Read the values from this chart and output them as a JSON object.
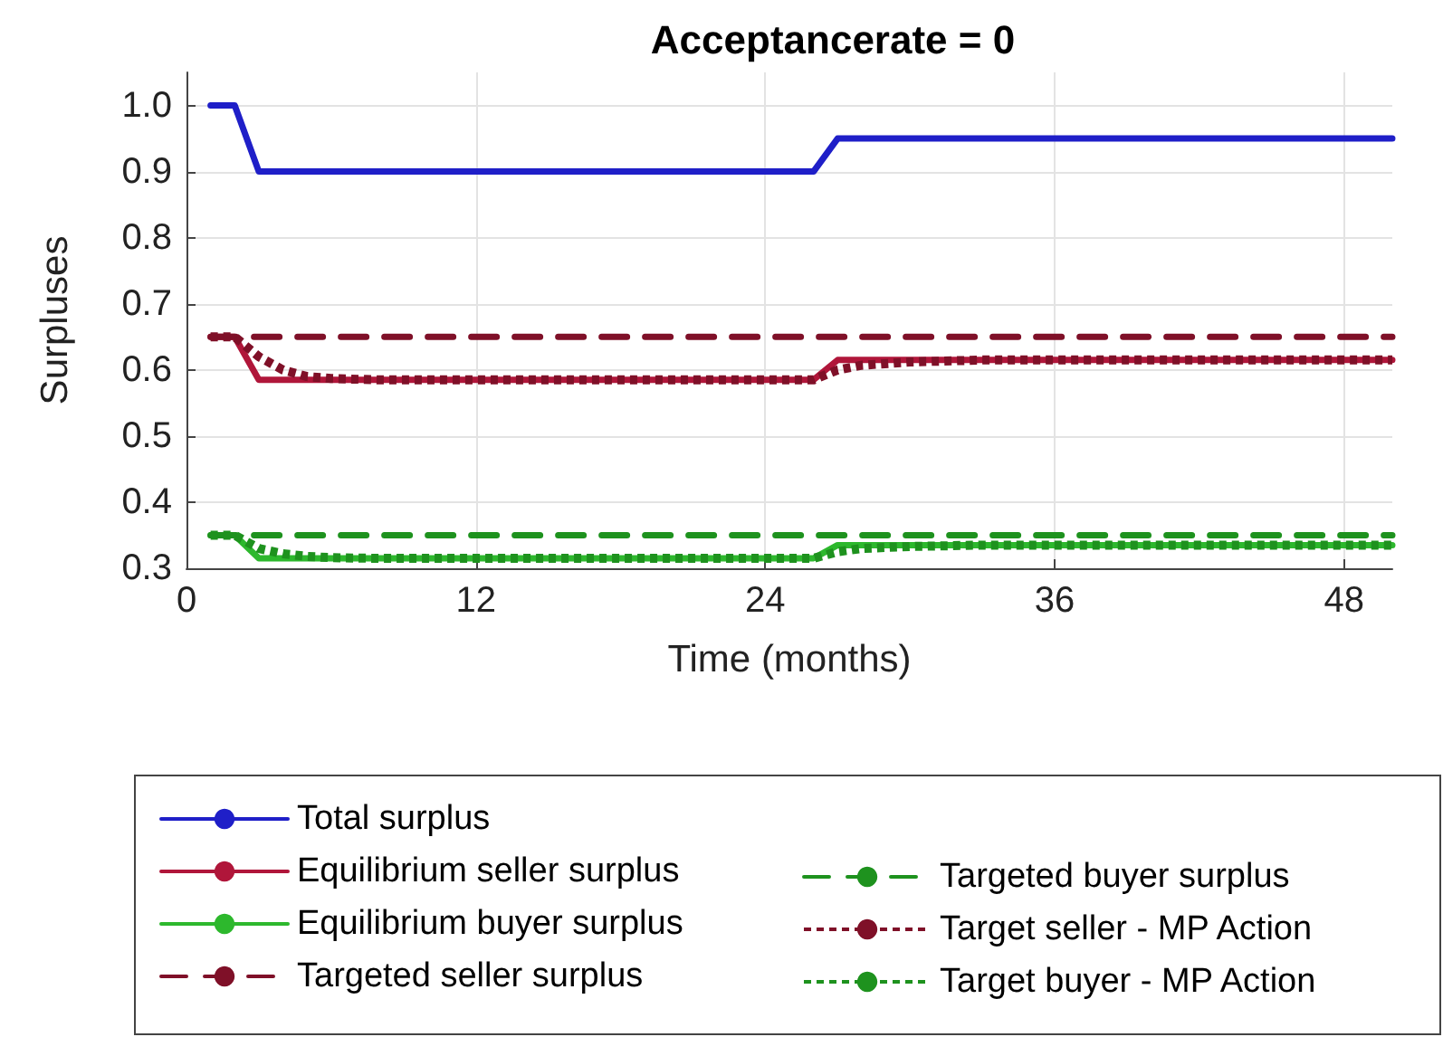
{
  "chart_data": {
    "type": "line",
    "title": "Acceptancerate = 0",
    "xlabel": "Time (months)",
    "ylabel": "Surpluses",
    "xlim": [
      0,
      50
    ],
    "xticks": [
      0,
      12,
      24,
      36,
      48
    ],
    "ylim": [
      0.3,
      1.05
    ],
    "yticks": [
      0.3,
      0.4,
      0.5,
      0.6,
      0.7,
      0.8,
      0.9,
      {
        "value": 1,
        "label": "1.0"
      }
    ],
    "grid": true,
    "legend": "bottom",
    "marker": "none",
    "series": [
      {
        "name": "Total surplus",
        "color": "#1f1fc8",
        "line_style": "solid",
        "x": [
          1,
          2,
          3,
          26,
          27,
          50
        ],
        "values": [
          1.0,
          1.0,
          0.9,
          0.9,
          0.95,
          0.95
        ]
      },
      {
        "name": "Equilibrium seller surplus",
        "color": "#b0163a",
        "line_style": "solid",
        "x": [
          1,
          2,
          3,
          26,
          27,
          50
        ],
        "values": [
          0.65,
          0.65,
          0.585,
          0.585,
          0.615,
          0.615
        ]
      },
      {
        "name": "Equilibrium buyer surplus",
        "color": "#2db82d",
        "line_style": "solid",
        "x": [
          1,
          2,
          3,
          26,
          27,
          50
        ],
        "values": [
          0.35,
          0.35,
          0.315,
          0.315,
          0.335,
          0.335
        ]
      },
      {
        "name": "Targeted seller surplus",
        "color": "#7f1028",
        "line_style": "dashed",
        "x": [
          1,
          50
        ],
        "values": [
          0.65,
          0.65
        ]
      },
      {
        "name": "Targeted buyer surplus",
        "color": "#1e921e",
        "line_style": "dashed",
        "x": [
          1,
          50
        ],
        "values": [
          0.35,
          0.35
        ]
      },
      {
        "name": "Target seller - MP Action",
        "color": "#7f1028",
        "line_style": "dotted",
        "x": [
          1,
          2,
          3,
          4,
          5,
          6,
          8,
          26,
          27,
          28,
          30,
          33,
          50
        ],
        "values": [
          0.65,
          0.65,
          0.62,
          0.6,
          0.59,
          0.587,
          0.585,
          0.585,
          0.6,
          0.607,
          0.612,
          0.615,
          0.615
        ]
      },
      {
        "name": "Target buyer - MP Action",
        "color": "#1e921e",
        "line_style": "dotted",
        "x": [
          1,
          2,
          3,
          4,
          5,
          6,
          8,
          26,
          27,
          28,
          30,
          33,
          50
        ],
        "values": [
          0.35,
          0.35,
          0.33,
          0.322,
          0.318,
          0.316,
          0.315,
          0.315,
          0.325,
          0.33,
          0.333,
          0.335,
          0.335
        ]
      }
    ]
  }
}
